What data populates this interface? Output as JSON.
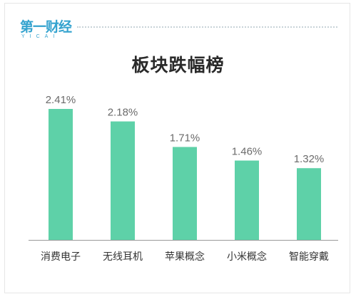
{
  "logo": {
    "main": "第一财经",
    "sub": "YICAI"
  },
  "chart_data": {
    "type": "bar",
    "title": "板块跌幅榜",
    "categories": [
      "消费电子",
      "无线耳机",
      "苹果概念",
      "小米概念",
      "智能穿戴"
    ],
    "values": [
      2.41,
      2.18,
      1.71,
      1.46,
      1.32
    ],
    "value_labels": [
      "2.41%",
      "2.18%",
      "1.71%",
      "1.46%",
      "1.32%"
    ],
    "ylim": [
      0,
      2.6
    ],
    "grid": false,
    "legend": "none",
    "colors": {
      "bar": "#5ed1a8",
      "label": "#6b6b6b",
      "axis": "#999999"
    }
  }
}
